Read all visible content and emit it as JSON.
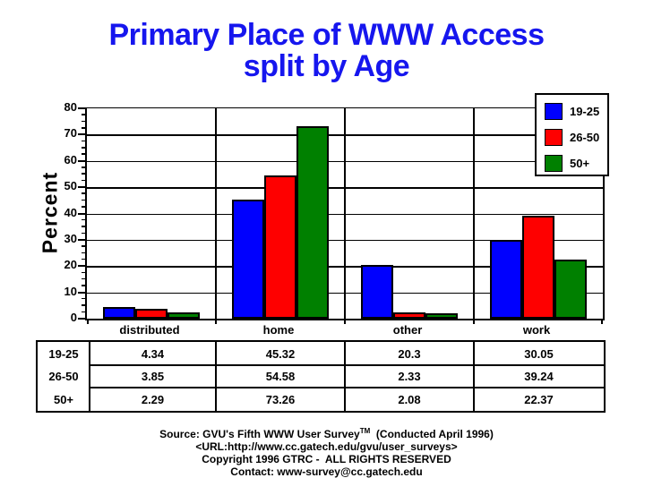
{
  "title": {
    "line1": "Primary Place of WWW Access",
    "line2": "split by Age"
  },
  "chart_data": {
    "type": "bar",
    "title": "Primary Place of WWW Access split by Age",
    "categories": [
      "distributed",
      "home",
      "other",
      "work"
    ],
    "series": [
      {
        "name": "19-25",
        "color": "#0000fe",
        "values": [
          4.34,
          45.32,
          20.3,
          30.05
        ]
      },
      {
        "name": "26-50",
        "color": "#fe0000",
        "values": [
          3.85,
          54.58,
          2.33,
          39.24
        ]
      },
      {
        "name": "50+",
        "color": "#008000",
        "values": [
          2.29,
          73.26,
          2.08,
          22.37
        ]
      }
    ],
    "xlabel": "",
    "ylabel": "Percent",
    "ylim": [
      0,
      80
    ],
    "ytick_step": 10,
    "minor_tick_step": 2.5,
    "grid": true,
    "legend_position": "top-right"
  },
  "table": {
    "row_labels": [
      "19-25",
      "26-50",
      "50+"
    ],
    "columns": [
      "distributed",
      "home",
      "other",
      "work"
    ],
    "rows": [
      [
        "4.34",
        "45.32",
        "20.3",
        "30.05"
      ],
      [
        "3.85",
        "54.58",
        "2.33",
        "39.24"
      ],
      [
        "2.29",
        "73.26",
        "2.08",
        "22.37"
      ]
    ]
  },
  "footer": {
    "line1_pre_tm": "Source: GVU's Fifth WWW User Survey",
    "line1_tm": "TM",
    "line1_post_tm": "  (Conducted April 1996)",
    "line2": "<URL:http://www.cc.gatech.edu/gvu/user_surveys>",
    "line3": "Copyright 1996 GTRC -  ALL RIGHTS RESERVED",
    "line4": "Contact: www-survey@cc.gatech.edu"
  }
}
